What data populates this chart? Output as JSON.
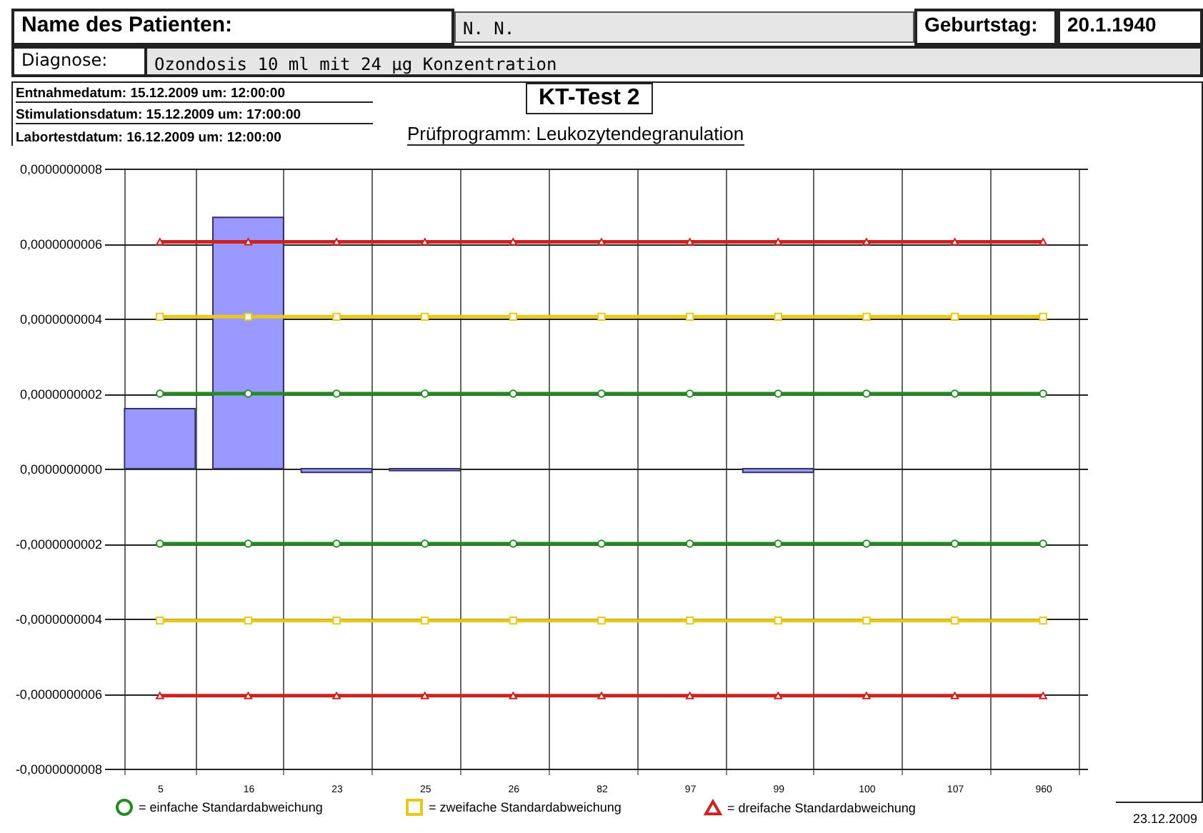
{
  "chart_data": {
    "type": "bar",
    "title": "KT-Test 2",
    "subtitle": "Prüfprogramm: Leukozytendegranulation",
    "annotations": [
      "Name des Patienten:",
      "N. N.",
      "Geburtstag:",
      "20.1.1940",
      "Diagnose:",
      "Ozondosis 10 ml mit 24 µg Konzentration",
      "Entnahmedatum: 15.12.2009 um: 12:00:00",
      "Stimulationsdatum: 15.12.2009 um: 17:00:00",
      "Labortestdatum: 16.12.2009 um: 12:00:00",
      "23.12.2009"
    ],
    "categories": [
      "5",
      "16",
      "23",
      "25",
      "26",
      "82",
      "97",
      "99",
      "100",
      "107",
      "960"
    ],
    "series": [
      {
        "color": "#9999ff",
        "values": [
          1.6e-10,
          6.7e-10,
          -1e-11,
          -5e-12,
          null,
          null,
          null,
          -1e-11,
          null,
          null,
          null
        ]
      },
      {
        "type": "line",
        "name": "= einfache Standardabweichung",
        "color": "#228b22",
        "marker": "circle",
        "values": [
          2e-10,
          2e-10,
          2e-10,
          2e-10,
          2e-10,
          2e-10,
          2e-10,
          2e-10,
          2e-10,
          2e-10,
          2e-10
        ]
      },
      {
        "type": "line",
        "name": "= zweifache Standardabweichung",
        "color": "#e8c91a",
        "marker": "square",
        "values": [
          4.05e-10,
          4.05e-10,
          4.05e-10,
          4.05e-10,
          4.05e-10,
          4.05e-10,
          4.05e-10,
          4.05e-10,
          4.05e-10,
          4.05e-10,
          4.05e-10
        ]
      },
      {
        "type": "line",
        "name": "= dreifache Standardabweichung",
        "color": "#cc2222",
        "marker": "triangle",
        "values": [
          6.05e-10,
          6.05e-10,
          6.05e-10,
          6.05e-10,
          6.05e-10,
          6.05e-10,
          6.05e-10,
          6.05e-10,
          6.05e-10,
          6.05e-10,
          6.05e-10
        ]
      },
      {
        "type": "line",
        "color": "#228b22",
        "marker": "circle",
        "values": [
          -2e-10,
          -2e-10,
          -2e-10,
          -2e-10,
          -2e-10,
          -2e-10,
          -2e-10,
          -2e-10,
          -2e-10,
          -2e-10,
          -2e-10
        ]
      },
      {
        "type": "line",
        "color": "#e8c91a",
        "marker": "square",
        "values": [
          -4.05e-10,
          -4.05e-10,
          -4.05e-10,
          -4.05e-10,
          -4.05e-10,
          -4.05e-10,
          -4.05e-10,
          -4.05e-10,
          -4.05e-10,
          -4.05e-10,
          -4.05e-10
        ]
      },
      {
        "type": "line",
        "color": "#cc2222",
        "marker": "triangle",
        "values": [
          -6.05e-10,
          -6.05e-10,
          -6.05e-10,
          -6.05e-10,
          -6.05e-10,
          -6.05e-10,
          -6.05e-10,
          -6.05e-10,
          -6.05e-10,
          -6.05e-10,
          -6.05e-10
        ]
      }
    ],
    "ylim": [
      -8e-10,
      8e-10
    ],
    "yticks": [
      {
        "value": -8e-10,
        "label": "-0,0000000008"
      },
      {
        "value": -6e-10,
        "label": "-0,0000000006"
      },
      {
        "value": -4e-10,
        "label": "-0,0000000004"
      },
      {
        "value": -2e-10,
        "label": "-0,0000000002"
      },
      {
        "value": 0,
        "label": "0,0000000000"
      },
      {
        "value": 2e-10,
        "label": "0,0000000002"
      },
      {
        "value": 4e-10,
        "label": "0,0000000004"
      },
      {
        "value": 6e-10,
        "label": "0,0000000006"
      },
      {
        "value": 8e-10,
        "label": "0,0000000008"
      }
    ],
    "grid": true,
    "legend": "bottom"
  }
}
